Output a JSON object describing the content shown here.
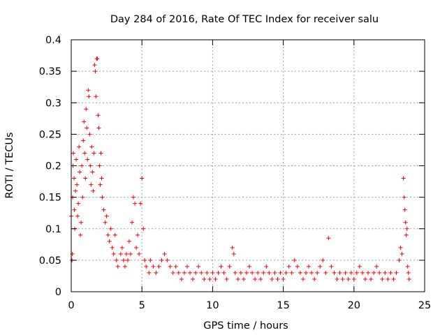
{
  "chart_data": {
    "type": "scatter",
    "title": "Day 284 of 2016, Rate Of TEC Index for receiver salu",
    "xlabel": "GPS time / hours",
    "ylabel": "ROTI / TECUs",
    "xlim": [
      0,
      25
    ],
    "ylim": [
      0,
      0.4
    ],
    "xticks": [
      0,
      5,
      10,
      15,
      20,
      25
    ],
    "xtick_labels": [
      "0",
      "5",
      "10",
      "15",
      "20",
      "25"
    ],
    "yticks": [
      0,
      0.05,
      0.1,
      0.15,
      0.2,
      0.25,
      0.3,
      0.35,
      0.4
    ],
    "ytick_labels": [
      "0",
      "0.05",
      "0.1",
      "0.15",
      "0.2",
      "0.25",
      "0.3",
      "0.35",
      "0.4"
    ],
    "grid": true,
    "marker": "+",
    "color": "#ff0000",
    "series": [
      {
        "name": "ROTI",
        "points": [
          [
            0.0,
            0.12
          ],
          [
            0.05,
            0.05
          ],
          [
            0.08,
            0.06
          ],
          [
            0.1,
            0.15
          ],
          [
            0.12,
            0.2
          ],
          [
            0.15,
            0.22
          ],
          [
            0.2,
            0.18
          ],
          [
            0.22,
            0.13
          ],
          [
            0.25,
            0.1
          ],
          [
            0.3,
            0.16
          ],
          [
            0.35,
            0.21
          ],
          [
            0.4,
            0.17
          ],
          [
            0.45,
            0.12
          ],
          [
            0.5,
            0.14
          ],
          [
            0.55,
            0.23
          ],
          [
            0.6,
            0.19
          ],
          [
            0.65,
            0.09
          ],
          [
            0.7,
            0.11
          ],
          [
            0.75,
            0.2
          ],
          [
            0.8,
            0.15
          ],
          [
            0.85,
            0.24
          ],
          [
            0.9,
            0.27
          ],
          [
            0.95,
            0.22
          ],
          [
            1.0,
            0.18
          ],
          [
            1.05,
            0.29
          ],
          [
            1.1,
            0.26
          ],
          [
            1.15,
            0.21
          ],
          [
            1.2,
            0.32
          ],
          [
            1.25,
            0.31
          ],
          [
            1.3,
            0.25
          ],
          [
            1.35,
            0.2
          ],
          [
            1.4,
            0.17
          ],
          [
            1.45,
            0.23
          ],
          [
            1.5,
            0.19
          ],
          [
            1.55,
            0.16
          ],
          [
            1.6,
            0.22
          ],
          [
            1.65,
            0.36
          ],
          [
            1.7,
            0.35
          ],
          [
            1.75,
            0.31
          ],
          [
            1.8,
            0.37
          ],
          [
            1.85,
            0.37
          ],
          [
            1.9,
            0.28
          ],
          [
            1.95,
            0.26
          ],
          [
            2.0,
            0.2
          ],
          [
            2.05,
            0.17
          ],
          [
            2.1,
            0.22
          ],
          [
            2.15,
            0.18
          ],
          [
            2.2,
            0.15
          ],
          [
            2.3,
            0.13
          ],
          [
            2.4,
            0.11
          ],
          [
            2.5,
            0.12
          ],
          [
            2.6,
            0.09
          ],
          [
            2.7,
            0.08
          ],
          [
            2.8,
            0.1
          ],
          [
            2.9,
            0.07
          ],
          [
            3.0,
            0.06
          ],
          [
            3.1,
            0.09
          ],
          [
            3.2,
            0.05
          ],
          [
            3.3,
            0.04
          ],
          [
            3.5,
            0.06
          ],
          [
            3.6,
            0.07
          ],
          [
            3.7,
            0.05
          ],
          [
            3.8,
            0.04
          ],
          [
            3.9,
            0.06
          ],
          [
            4.0,
            0.05
          ],
          [
            4.1,
            0.08
          ],
          [
            4.2,
            0.06
          ],
          [
            4.3,
            0.11
          ],
          [
            4.4,
            0.15
          ],
          [
            4.5,
            0.14
          ],
          [
            4.6,
            0.07
          ],
          [
            4.7,
            0.09
          ],
          [
            4.8,
            0.06
          ],
          [
            4.9,
            0.14
          ],
          [
            5.0,
            0.18
          ],
          [
            5.1,
            0.1
          ],
          [
            5.2,
            0.05
          ],
          [
            5.3,
            0.04
          ],
          [
            5.5,
            0.03
          ],
          [
            5.6,
            0.05
          ],
          [
            5.8,
            0.04
          ],
          [
            6.0,
            0.03
          ],
          [
            6.2,
            0.04
          ],
          [
            6.4,
            0.05
          ],
          [
            6.6,
            0.06
          ],
          [
            6.8,
            0.05
          ],
          [
            7.0,
            0.04
          ],
          [
            7.2,
            0.03
          ],
          [
            7.4,
            0.04
          ],
          [
            7.6,
            0.03
          ],
          [
            7.8,
            0.02
          ],
          [
            8.0,
            0.03
          ],
          [
            8.2,
            0.04
          ],
          [
            8.4,
            0.03
          ],
          [
            8.6,
            0.02
          ],
          [
            8.8,
            0.03
          ],
          [
            9.0,
            0.04
          ],
          [
            9.2,
            0.03
          ],
          [
            9.4,
            0.02
          ],
          [
            9.6,
            0.03
          ],
          [
            9.8,
            0.02
          ],
          [
            10.0,
            0.03
          ],
          [
            10.2,
            0.02
          ],
          [
            10.4,
            0.03
          ],
          [
            10.6,
            0.04
          ],
          [
            10.8,
            0.03
          ],
          [
            11.0,
            0.02
          ],
          [
            11.2,
            0.04
          ],
          [
            11.4,
            0.07
          ],
          [
            11.5,
            0.06
          ],
          [
            11.6,
            0.03
          ],
          [
            11.8,
            0.02
          ],
          [
            12.0,
            0.03
          ],
          [
            12.2,
            0.02
          ],
          [
            12.4,
            0.03
          ],
          [
            12.6,
            0.04
          ],
          [
            12.8,
            0.03
          ],
          [
            13.0,
            0.02
          ],
          [
            13.2,
            0.03
          ],
          [
            13.4,
            0.02
          ],
          [
            13.6,
            0.03
          ],
          [
            13.8,
            0.04
          ],
          [
            14.0,
            0.03
          ],
          [
            14.2,
            0.02
          ],
          [
            14.4,
            0.03
          ],
          [
            14.6,
            0.02
          ],
          [
            14.8,
            0.03
          ],
          [
            15.0,
            0.02
          ],
          [
            15.2,
            0.03
          ],
          [
            15.4,
            0.04
          ],
          [
            15.6,
            0.03
          ],
          [
            15.8,
            0.05
          ],
          [
            16.0,
            0.04
          ],
          [
            16.2,
            0.03
          ],
          [
            16.4,
            0.02
          ],
          [
            16.6,
            0.03
          ],
          [
            16.8,
            0.04
          ],
          [
            17.0,
            0.03
          ],
          [
            17.2,
            0.02
          ],
          [
            17.4,
            0.03
          ],
          [
            17.6,
            0.04
          ],
          [
            17.8,
            0.05
          ],
          [
            18.0,
            0.03
          ],
          [
            18.2,
            0.085
          ],
          [
            18.4,
            0.04
          ],
          [
            18.6,
            0.03
          ],
          [
            18.8,
            0.02
          ],
          [
            19.0,
            0.03
          ],
          [
            19.2,
            0.02
          ],
          [
            19.4,
            0.03
          ],
          [
            19.6,
            0.02
          ],
          [
            19.8,
            0.03
          ],
          [
            20.0,
            0.02
          ],
          [
            20.2,
            0.03
          ],
          [
            20.4,
            0.04
          ],
          [
            20.6,
            0.03
          ],
          [
            20.8,
            0.02
          ],
          [
            21.0,
            0.03
          ],
          [
            21.2,
            0.02
          ],
          [
            21.4,
            0.03
          ],
          [
            21.6,
            0.04
          ],
          [
            21.8,
            0.03
          ],
          [
            22.0,
            0.02
          ],
          [
            22.2,
            0.03
          ],
          [
            22.4,
            0.02
          ],
          [
            22.6,
            0.03
          ],
          [
            22.8,
            0.02
          ],
          [
            23.0,
            0.03
          ],
          [
            23.2,
            0.05
          ],
          [
            23.3,
            0.07
          ],
          [
            23.4,
            0.06
          ],
          [
            23.5,
            0.18
          ],
          [
            23.55,
            0.15
          ],
          [
            23.6,
            0.13
          ],
          [
            23.65,
            0.11
          ],
          [
            23.7,
            0.09
          ],
          [
            23.75,
            0.1
          ],
          [
            23.8,
            0.04
          ],
          [
            23.85,
            0.03
          ],
          [
            23.9,
            0.02
          ]
        ]
      }
    ]
  }
}
